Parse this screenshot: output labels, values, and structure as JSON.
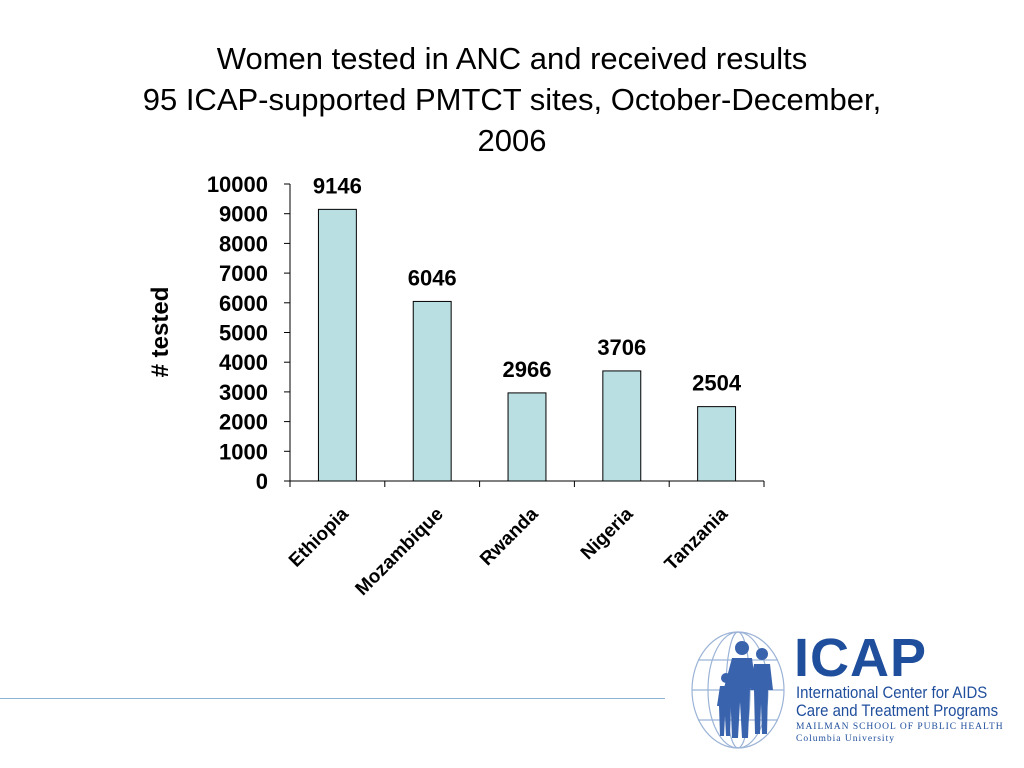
{
  "chart_data": {
    "type": "bar",
    "title_lines": [
      "Women tested in ANC and received results",
      "95 ICAP-supported PMTCT sites, October-December,",
      "2006"
    ],
    "xlabel": "",
    "ylabel": "# tested",
    "categories": [
      "Ethiopia",
      "Mozambique",
      "Rwanda",
      "Nigeria",
      "Tanzania"
    ],
    "values": [
      9146,
      6046,
      2966,
      3706,
      2504
    ],
    "data_labels": [
      "9146",
      "6046",
      "2966",
      "3706",
      "2504"
    ],
    "ylim": [
      0,
      10000
    ],
    "yticks": [
      0,
      1000,
      2000,
      3000,
      4000,
      5000,
      6000,
      7000,
      8000,
      9000,
      10000
    ],
    "grid": false,
    "legend": "none",
    "bar_color": "#b9dfe3",
    "bar_stroke": "#000000"
  },
  "logo": {
    "acronym": "ICAP",
    "line1": "International Center for AIDS",
    "line2": "Care and Treatment Programs",
    "school": "MAILMAN SCHOOL OF PUBLIC HEALTH",
    "university": "Columbia University",
    "icon": "family-globe-icon",
    "brand_color": "#1f4e9c"
  },
  "footer": {
    "rule_color": "#8fb3d4"
  }
}
